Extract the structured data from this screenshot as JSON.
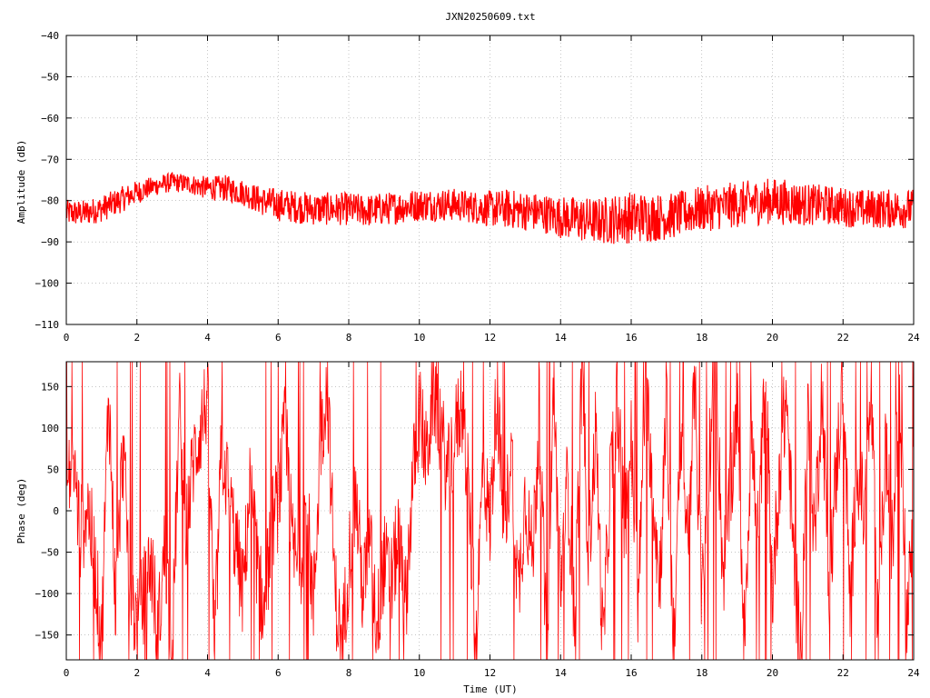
{
  "title": "JXN20250609.txt",
  "colors": {
    "series": "#ff0000",
    "axis": "#000000",
    "grid": "#a0a0a0",
    "background": "#ffffff"
  },
  "chart_data": [
    {
      "type": "line",
      "ylabel": "Amplitude (dB)",
      "xlim": [
        0,
        24
      ],
      "ylim": [
        -110,
        -40
      ],
      "xticks": [
        0,
        2,
        4,
        6,
        8,
        10,
        12,
        14,
        16,
        18,
        20,
        22,
        24
      ],
      "yticks": [
        -110,
        -100,
        -90,
        -80,
        -70,
        -60,
        -50,
        -40
      ],
      "grid": "dotted",
      "series": [
        {
          "color": "#ff0000",
          "x": [
            0,
            0.5,
            1,
            1.5,
            2,
            2.5,
            3,
            3.5,
            4,
            4.5,
            5,
            5.5,
            6,
            6.5,
            7,
            7.5,
            8,
            8.5,
            9,
            9.5,
            10,
            10.5,
            11,
            11.5,
            12,
            12.5,
            13,
            13.5,
            14,
            14.5,
            15,
            15.5,
            16,
            16.5,
            17,
            17.5,
            18,
            18.5,
            19,
            19.5,
            20,
            20.5,
            21,
            21.5,
            22,
            22.5,
            23,
            23.5,
            24
          ],
          "y": [
            -83,
            -83,
            -82,
            -80,
            -78,
            -76.5,
            -75.5,
            -76,
            -77,
            -77,
            -78,
            -80,
            -81,
            -81.5,
            -82,
            -82,
            -82,
            -82.5,
            -82,
            -81.5,
            -81,
            -81,
            -81,
            -81.5,
            -82,
            -82,
            -82.5,
            -83,
            -84,
            -84.5,
            -85,
            -84.5,
            -84,
            -84,
            -84,
            -83,
            -82,
            -81.5,
            -81,
            -80.5,
            -80,
            -80.5,
            -81,
            -81,
            -81.5,
            -82,
            -82,
            -82,
            -82
          ],
          "spread": [
            2,
            2,
            2,
            2,
            1.8,
            1.5,
            1.5,
            1.5,
            1.8,
            2,
            2,
            2.2,
            2.5,
            2.5,
            2.5,
            2.5,
            2.5,
            2.5,
            2.5,
            2.5,
            2.5,
            2.5,
            2.5,
            2.5,
            2.8,
            3,
            3,
            3,
            3.2,
            3.5,
            3.5,
            3.8,
            4,
            3.8,
            3.5,
            3.5,
            3.5,
            3.5,
            3.5,
            3.5,
            3.5,
            3.5,
            3.2,
            3,
            3,
            3,
            3,
            3,
            3
          ]
        }
      ]
    },
    {
      "type": "line",
      "xlabel": "Time (UT)",
      "ylabel": "Phase (deg)",
      "xlim": [
        0,
        24
      ],
      "ylim": [
        -180,
        180
      ],
      "xticks": [
        0,
        2,
        4,
        6,
        8,
        10,
        12,
        14,
        16,
        18,
        20,
        22,
        24
      ],
      "yticks": [
        -150,
        -100,
        -50,
        0,
        50,
        100,
        150
      ],
      "grid": "dotted",
      "series": [
        {
          "color": "#ff0000",
          "x": [
            0,
            0.2,
            0.4,
            0.6,
            0.8,
            1.0,
            1.2,
            1.4,
            1.6,
            1.8,
            2.0,
            2.2,
            2.4,
            2.6,
            2.8,
            3.0,
            3.2,
            3.4,
            3.6,
            3.8,
            4.0,
            4.2,
            4.4,
            4.6,
            4.8,
            5.0,
            5.2,
            5.4,
            5.6,
            5.8,
            6.0,
            6.2,
            6.4,
            6.6,
            6.8,
            7.0,
            7.2,
            7.4,
            7.6,
            7.8,
            8.0,
            8.2,
            8.4,
            8.6,
            8.8,
            9.0,
            9.2,
            9.4,
            9.6,
            9.8,
            10.0,
            10.2,
            10.4,
            10.6,
            10.8,
            11.0,
            11.2,
            11.4,
            11.6,
            11.8,
            12.0,
            12.2,
            12.4,
            12.6,
            12.8,
            13.0,
            13.2,
            13.4,
            13.6,
            13.8,
            14.0,
            14.2,
            14.4,
            14.6,
            14.8,
            15.0,
            15.2,
            15.4,
            15.6,
            15.8,
            16.0,
            16.2,
            16.4,
            16.6,
            16.8,
            17.0,
            17.2,
            17.4,
            17.6,
            17.8,
            18.0,
            18.2,
            18.4,
            18.6,
            18.8,
            19.0,
            19.2,
            19.4,
            19.6,
            19.8,
            20.0,
            20.2,
            20.4,
            20.6,
            20.8,
            21.0,
            21.2,
            21.4,
            21.6,
            21.8,
            22.0,
            22.2,
            22.4,
            22.6,
            22.8,
            23.0,
            23.2,
            23.4,
            23.6,
            23.8,
            24.0
          ],
          "y": [
            20,
            60,
            -30,
            10,
            -60,
            -160,
            150,
            -120,
            80,
            -90,
            -140,
            -100,
            -60,
            -150,
            -40,
            -170,
            120,
            -20,
            60,
            100,
            140,
            -170,
            80,
            20,
            -40,
            -100,
            30,
            -60,
            -130,
            -20,
            10,
            100,
            -40,
            -80,
            20,
            -120,
            90,
            150,
            -90,
            -170,
            -60,
            20,
            -100,
            -40,
            -140,
            -60,
            -90,
            -30,
            -120,
            30,
            120,
            60,
            150,
            100,
            40,
            90,
            130,
            20,
            -170,
            60,
            -20,
            150,
            -40,
            80,
            -100,
            20,
            -60,
            110,
            -170,
            140,
            -90,
            40,
            -130,
            160,
            -50,
            100,
            -170,
            30,
            140,
            -20,
            80,
            -120,
            160,
            40,
            -90,
            120,
            -160,
            70,
            -30,
            150,
            -110,
            60,
            170,
            -80,
            20,
            130,
            -150,
            90,
            -40,
            170,
            -100,
            50,
            140,
            -60,
            -170,
            110,
            -30,
            150,
            -90,
            40,
            170,
            -120,
            60,
            -10,
            140,
            -160,
            80,
            -50,
            160,
            -130,
            30
          ]
        }
      ]
    }
  ]
}
